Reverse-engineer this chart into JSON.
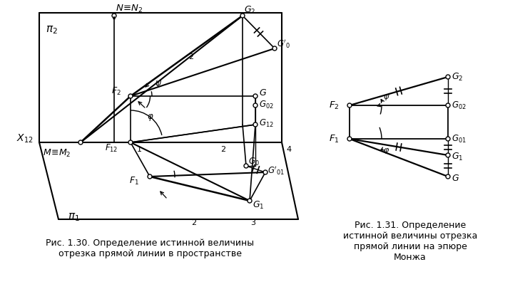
{
  "fig_width": 7.43,
  "fig_height": 4.2,
  "dpi": 100,
  "bg_color": "#ffffff",
  "caption1": "Рис. 1.30. Определение истинной величины\nотрезка прямой линии в пространстве",
  "caption2": "Рис. 1.31. Определение\nистинной величины отрезка\nпрямой линии на эпюре\nМонжа",
  "caption_fontsize": 9.0
}
